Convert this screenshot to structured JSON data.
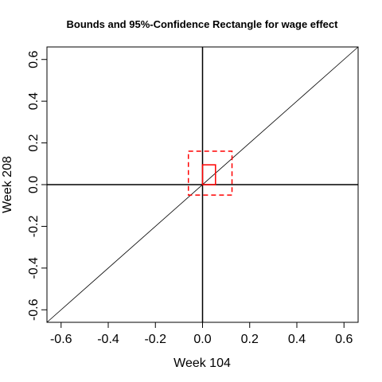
{
  "chart_data": {
    "type": "scatter",
    "title": "Bounds and 95%-Confidence Rectangle for wage effect",
    "xlabel": "Week 104",
    "ylabel": "Week 208",
    "xlim": [
      -0.66,
      0.66
    ],
    "ylim": [
      -0.66,
      0.66
    ],
    "xticks": [
      -0.6,
      -0.4,
      -0.2,
      0.0,
      0.2,
      0.4,
      0.6
    ],
    "yticks": [
      -0.6,
      -0.4,
      -0.2,
      0.0,
      0.2,
      0.4,
      0.6
    ],
    "xtick_labels": [
      "-0.6",
      "-0.4",
      "-0.2",
      "0.0",
      "0.2",
      "0.4",
      "0.6"
    ],
    "ytick_labels": [
      "-0.6",
      "-0.4",
      "-0.2",
      "0.0",
      "0.2",
      "0.4",
      "0.6"
    ],
    "grid": false,
    "reference_lines": {
      "vertical_x": 0.0,
      "horizontal_y": 0.0,
      "diagonal": "y = x"
    },
    "bounds_rectangle": {
      "x": [
        0.0,
        0.055
      ],
      "y": [
        0.0,
        0.095
      ],
      "color": "#ff0000",
      "style": "solid"
    },
    "confidence_rectangle": {
      "x": [
        -0.06,
        0.125
      ],
      "y": [
        -0.05,
        0.16
      ],
      "color": "#ff0000",
      "style": "dashed"
    }
  }
}
